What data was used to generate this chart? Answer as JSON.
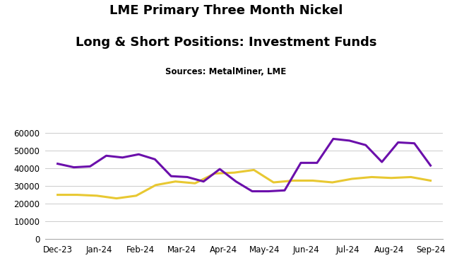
{
  "title_line1": "LME Primary Three Month Nickel",
  "title_line2": "Long & Short Positions: Investment Funds",
  "subtitle": "Sources: MetalMiner, LME",
  "xlabel": "",
  "ylabel": "",
  "ylim": [
    0,
    65000
  ],
  "yticks": [
    0,
    10000,
    20000,
    30000,
    40000,
    50000,
    60000
  ],
  "x_labels": [
    "Dec-23",
    "Jan-24",
    "Feb-24",
    "Mar-24",
    "Apr-24",
    "May-24",
    "Jun-24",
    "Jul-24",
    "Aug-24",
    "Sep-24"
  ],
  "long_color": "#E8C832",
  "short_color": "#6B0FAB",
  "line_width": 2.2,
  "legend_fontsize": 11,
  "long_values": [
    25000,
    25000,
    24500,
    23000,
    24500,
    30500,
    32500,
    31500,
    37000,
    37500,
    39000,
    32000,
    33000,
    33000,
    32000,
    34000,
    35000,
    34500,
    35000,
    33000
  ],
  "short_values": [
    42500,
    40500,
    41000,
    47000,
    46000,
    47800,
    45000,
    35500,
    35000,
    32500,
    39500,
    32500,
    27000,
    27000,
    27500,
    43000,
    43000,
    56500,
    55500,
    53000,
    43500,
    54500,
    54000,
    41500
  ],
  "background_color": "#ffffff",
  "grid_color": "#cccccc"
}
